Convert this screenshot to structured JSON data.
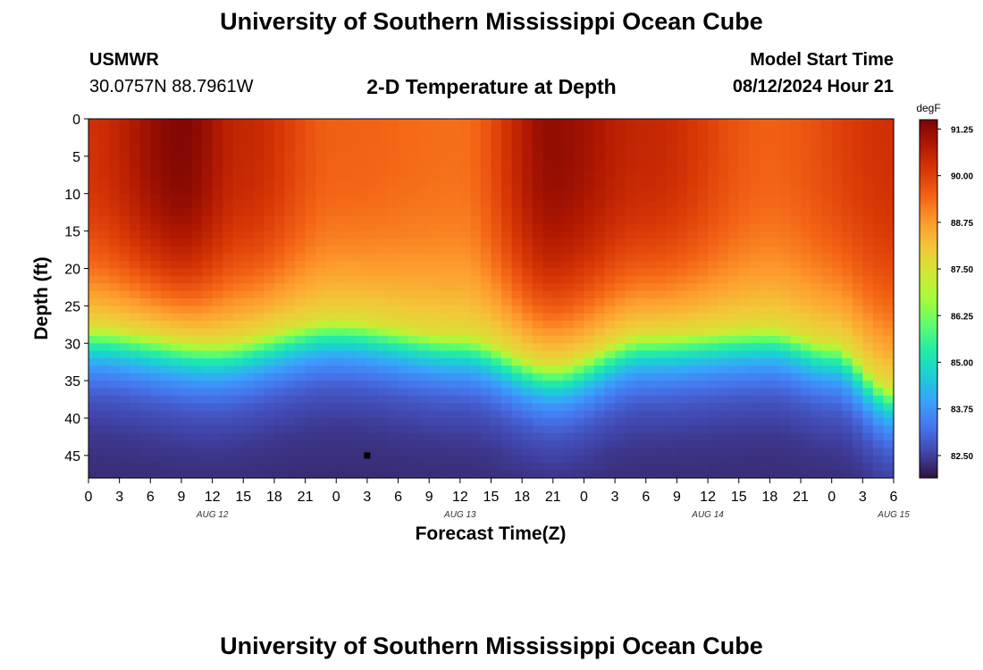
{
  "header": {
    "title": "University of Southern Mississippi Ocean Cube",
    "station": "USMWR",
    "coordinates": "30.0757N  88.7961W",
    "subtitle": "2-D Temperature at Depth",
    "model_label": "Model Start Time",
    "model_time": "08/12/2024 Hour 21"
  },
  "footer": {
    "title": "University of Southern Mississippi Ocean Cube"
  },
  "chart_data": {
    "type": "heatmap",
    "xlabel": "Forecast Time(Z)",
    "ylabel": "Depth (ft)",
    "x_tick_labels": [
      "0",
      "3",
      "6",
      "9",
      "12",
      "15",
      "18",
      "21",
      "0",
      "3",
      "6",
      "9",
      "12",
      "15",
      "18",
      "21",
      "0",
      "3",
      "6",
      "9",
      "12",
      "15",
      "18",
      "21",
      "0",
      "3",
      "6"
    ],
    "date_labels": [
      {
        "label": "AUG 12",
        "hour": 12
      },
      {
        "label": "AUG 13",
        "hour": 36
      },
      {
        "label": "AUG 14",
        "hour": 60
      },
      {
        "label": "AUG 15",
        "hour": 78
      }
    ],
    "xlim": [
      0,
      78
    ],
    "y_ticks": [
      0,
      5,
      10,
      15,
      20,
      25,
      30,
      35,
      40,
      45
    ],
    "ylim": [
      0,
      48
    ],
    "y_inverted": true,
    "colorbar": {
      "unit": "degF",
      "ticks": [
        "91.25",
        "90.00",
        "88.75",
        "87.50",
        "86.25",
        "85.00",
        "83.75",
        "82.50"
      ],
      "range": [
        81.9,
        91.5
      ],
      "colors": [
        "#30123b",
        "#4145ab",
        "#4675ed",
        "#39a2fc",
        "#1bcfd4",
        "#24eca6",
        "#61fc6c",
        "#a4fc3b",
        "#d1e834",
        "#f3c63a",
        "#fe9b2d",
        "#f36315",
        "#d93806",
        "#b11901",
        "#7a0403"
      ]
    },
    "marker": {
      "hour": 27,
      "depth": 45
    },
    "surface_temperature_degF": [
      {
        "hour": 0,
        "value": 90.3
      },
      {
        "hour": 9,
        "value": 91.4
      },
      {
        "hour": 15,
        "value": 90.5
      },
      {
        "hour": 24,
        "value": 89.5
      },
      {
        "hour": 36,
        "value": 89.3
      },
      {
        "hour": 45,
        "value": 91.2
      },
      {
        "hour": 54,
        "value": 90.5
      },
      {
        "hour": 66,
        "value": 89.5
      },
      {
        "hour": 78,
        "value": 90.3
      }
    ],
    "isotherm_depth_87_5_ft": [
      {
        "hour": 0,
        "value": 28
      },
      {
        "hour": 12,
        "value": 30
      },
      {
        "hour": 24,
        "value": 27
      },
      {
        "hour": 36,
        "value": 29
      },
      {
        "hour": 45,
        "value": 33
      },
      {
        "hour": 54,
        "value": 29
      },
      {
        "hour": 66,
        "value": 28
      },
      {
        "hour": 72,
        "value": 30
      },
      {
        "hour": 78,
        "value": 36
      }
    ],
    "bottom_temperature_degF": 82.2
  }
}
